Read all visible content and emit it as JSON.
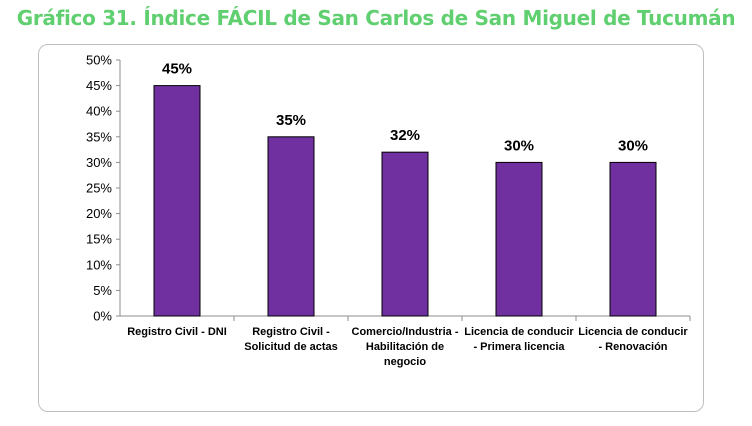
{
  "page": {
    "title": "Gráfico 31. Índice FÁCIL de San Carlos de San Miguel de Tucumán",
    "title_color": "#5fcf6f"
  },
  "chart_data": {
    "type": "bar",
    "title": "",
    "xlabel": "",
    "ylabel": "",
    "categories": [
      [
        "Registro Civil - DNI"
      ],
      [
        "Registro Civil -",
        "Solicitud de actas"
      ],
      [
        "Comercio/Industria -",
        "Habilitación de",
        "negocio"
      ],
      [
        "Licencia de conducir",
        "- Primera licencia"
      ],
      [
        "Licencia de conducir",
        "- Renovación"
      ]
    ],
    "values": [
      45,
      35,
      32,
      30,
      30
    ],
    "data_labels": [
      "45%",
      "35%",
      "32%",
      "30%",
      "30%"
    ],
    "ylim": [
      0,
      50
    ],
    "y_ticks": [
      0,
      5,
      10,
      15,
      20,
      25,
      30,
      35,
      40,
      45,
      50
    ],
    "y_tick_labels": [
      "0%",
      "5%",
      "10%",
      "15%",
      "20%",
      "25%",
      "30%",
      "35%",
      "40%",
      "45%",
      "50%"
    ],
    "grid": false,
    "legend": "none",
    "bar_color": "#7030a0",
    "bar_edge_color": "#000000"
  }
}
